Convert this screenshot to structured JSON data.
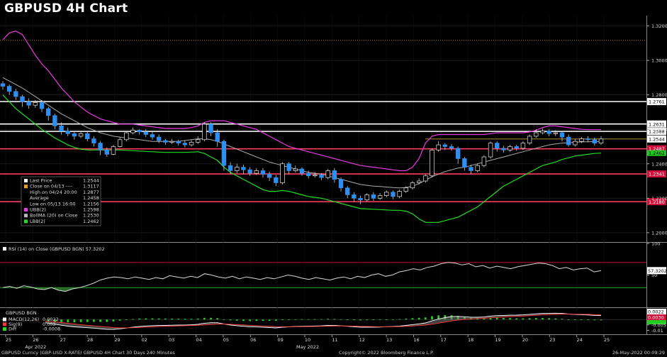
{
  "title": "GBPUSD 4H Chart",
  "chart_data": {
    "type": "candlestick",
    "instrument": "GBPUSD",
    "panels": {
      "price": {
        "ylim": [
          1.195,
          1.326
        ],
        "ticks": [
          "1.3200",
          "1.3000",
          "1.2800",
          "1.2600",
          "1.2400",
          "1.2200",
          "1.2000"
        ],
        "levels": [
          {
            "label": "1.2761",
            "value": 1.2761,
            "color": "#ffffff"
          },
          {
            "label": "1.2631",
            "value": 1.2631,
            "color": "#ffffff"
          },
          {
            "label": "1.2588",
            "value": 1.2588,
            "color": "#ffffff"
          },
          {
            "label": "1.2487",
            "value": 1.2487,
            "color": "#ff3b5c"
          },
          {
            "label": "1.2341",
            "value": 1.2341,
            "color": "#ff3b5c"
          },
          {
            "label": "1.2180",
            "value": 1.218,
            "color": "#ff3b5c"
          }
        ],
        "dotted_level": 1.3117,
        "last_price_line": 1.2544,
        "last_tag": "1.2544",
        "green_tag": "1.2462"
      },
      "rsi": {
        "label": "RSI (14)  on Close (GBPUSD BGN) 57.3202",
        "ylim": [
          0,
          100
        ],
        "ticks": [
          "100",
          "50"
        ],
        "overbought": 70,
        "oversold": 30,
        "last_tag": "57.3202",
        "values": [
          30,
          32,
          29,
          33,
          31,
          28,
          27,
          30,
          26,
          24,
          28,
          30,
          33,
          37,
          42,
          45,
          47,
          46,
          44,
          47,
          45,
          43,
          46,
          44,
          49,
          47,
          45,
          48,
          46,
          52,
          50,
          47,
          45,
          48,
          44,
          47,
          45,
          43,
          46,
          44,
          47,
          50,
          48,
          45,
          43,
          46,
          44,
          42,
          45,
          47,
          44,
          48,
          46,
          50,
          52,
          48,
          50,
          55,
          57,
          60,
          58,
          62,
          64,
          68,
          70,
          69,
          66,
          68,
          63,
          65,
          61,
          64,
          62,
          60,
          63,
          65,
          67,
          69,
          68,
          65,
          60,
          62,
          58,
          60,
          61,
          55,
          57
        ]
      },
      "macd": {
        "title": "GBPUSD BGN",
        "ylim": [
          -0.013,
          0.01
        ],
        "ticks": [
          "-0.005",
          "-0.01"
        ],
        "tags": [
          "0.0022",
          "0.0030"
        ]
      }
    },
    "x_ticks": [
      "25",
      "26",
      "27",
      "28",
      "29",
      "02",
      "03",
      "04",
      "05",
      "06",
      "09",
      "10",
      "11",
      "12",
      "13",
      "16",
      "17",
      "18",
      "19",
      "20",
      "23",
      "24",
      "25"
    ],
    "x_month_labels": [
      {
        "text": "Apr 2022",
        "at": 1
      },
      {
        "text": "May 2022",
        "at": 11
      }
    ],
    "candles": [
      [
        1.2865,
        1.285,
        1.288,
        1.283
      ],
      [
        1.285,
        1.282,
        1.286,
        1.28
      ],
      [
        1.282,
        1.279,
        1.2835,
        1.277
      ],
      [
        1.279,
        1.276,
        1.28,
        1.273
      ],
      [
        1.276,
        1.274,
        1.278,
        1.272
      ],
      [
        1.274,
        1.2755,
        1.277,
        1.2725
      ],
      [
        1.2755,
        1.272,
        1.277,
        1.27
      ],
      [
        1.272,
        1.268,
        1.273,
        1.265
      ],
      [
        1.268,
        1.262,
        1.269,
        1.26
      ],
      [
        1.262,
        1.259,
        1.264,
        1.257
      ],
      [
        1.259,
        1.2575,
        1.261,
        1.256
      ],
      [
        1.2575,
        1.256,
        1.259,
        1.254
      ],
      [
        1.256,
        1.2575,
        1.2585,
        1.255
      ],
      [
        1.2575,
        1.2545,
        1.259,
        1.253
      ],
      [
        1.2545,
        1.252,
        1.256,
        1.25
      ],
      [
        1.252,
        1.248,
        1.253,
        1.245
      ],
      [
        1.248,
        1.2455,
        1.2495,
        1.244
      ],
      [
        1.2455,
        1.25,
        1.251,
        1.245
      ],
      [
        1.25,
        1.254,
        1.2555,
        1.2495
      ],
      [
        1.254,
        1.258,
        1.259,
        1.253
      ],
      [
        1.258,
        1.2595,
        1.261,
        1.257
      ],
      [
        1.2595,
        1.2585,
        1.26,
        1.257
      ],
      [
        1.2585,
        1.257,
        1.26,
        1.2555
      ],
      [
        1.257,
        1.2555,
        1.2585,
        1.254
      ],
      [
        1.2555,
        1.2535,
        1.257,
        1.252
      ],
      [
        1.2535,
        1.2525,
        1.2545,
        1.251
      ],
      [
        1.2525,
        1.253,
        1.2545,
        1.2515
      ],
      [
        1.253,
        1.252,
        1.254,
        1.2505
      ],
      [
        1.252,
        1.251,
        1.2535,
        1.2495
      ],
      [
        1.251,
        1.2525,
        1.254,
        1.25
      ],
      [
        1.2525,
        1.254,
        1.256,
        1.2515
      ],
      [
        1.254,
        1.263,
        1.264,
        1.253
      ],
      [
        1.263,
        1.258,
        1.264,
        1.256
      ],
      [
        1.258,
        1.253,
        1.26,
        1.25
      ],
      [
        1.253,
        1.239,
        1.254,
        1.236
      ],
      [
        1.239,
        1.236,
        1.241,
        1.234
      ],
      [
        1.236,
        1.238,
        1.24,
        1.2345
      ],
      [
        1.238,
        1.2365,
        1.2395,
        1.234
      ],
      [
        1.2365,
        1.2345,
        1.238,
        1.233
      ],
      [
        1.2345,
        1.236,
        1.2375,
        1.2335
      ],
      [
        1.236,
        1.234,
        1.2375,
        1.232
      ],
      [
        1.234,
        1.232,
        1.2355,
        1.23
      ],
      [
        1.232,
        1.229,
        1.2335,
        1.227
      ],
      [
        1.229,
        1.24,
        1.241,
        1.228
      ],
      [
        1.24,
        1.236,
        1.241,
        1.234
      ],
      [
        1.236,
        1.237,
        1.239,
        1.235
      ],
      [
        1.237,
        1.2345,
        1.238,
        1.233
      ],
      [
        1.2345,
        1.233,
        1.236,
        1.2315
      ],
      [
        1.233,
        1.2335,
        1.235,
        1.232
      ],
      [
        1.2335,
        1.232,
        1.2345,
        1.2305
      ],
      [
        1.232,
        1.236,
        1.237,
        1.231
      ],
      [
        1.236,
        1.231,
        1.2375,
        1.229
      ],
      [
        1.231,
        1.226,
        1.232,
        1.224
      ],
      [
        1.226,
        1.222,
        1.227,
        1.22
      ],
      [
        1.222,
        1.22,
        1.2235,
        1.218
      ],
      [
        1.22,
        1.219,
        1.2215,
        1.2165
      ],
      [
        1.219,
        1.222,
        1.223,
        1.218
      ],
      [
        1.222,
        1.22,
        1.2235,
        1.2185
      ],
      [
        1.22,
        1.2215,
        1.223,
        1.219
      ],
      [
        1.2215,
        1.2235,
        1.2245,
        1.2205
      ],
      [
        1.2235,
        1.221,
        1.2245,
        1.2195
      ],
      [
        1.221,
        1.224,
        1.225,
        1.22
      ],
      [
        1.224,
        1.226,
        1.227,
        1.223
      ],
      [
        1.226,
        1.229,
        1.23,
        1.225
      ],
      [
        1.229,
        1.23,
        1.2315,
        1.228
      ],
      [
        1.23,
        1.233,
        1.234,
        1.229
      ],
      [
        1.233,
        1.248,
        1.249,
        1.232
      ],
      [
        1.248,
        1.251,
        1.253,
        1.247
      ],
      [
        1.251,
        1.25,
        1.252,
        1.248
      ],
      [
        1.25,
        1.249,
        1.2515,
        1.2475
      ],
      [
        1.249,
        1.243,
        1.25,
        1.24
      ],
      [
        1.243,
        1.238,
        1.244,
        1.236
      ],
      [
        1.238,
        1.236,
        1.2395,
        1.234
      ],
      [
        1.236,
        1.239,
        1.24,
        1.235
      ],
      [
        1.239,
        1.244,
        1.245,
        1.238
      ],
      [
        1.244,
        1.252,
        1.253,
        1.243
      ],
      [
        1.252,
        1.249,
        1.253,
        1.247
      ],
      [
        1.249,
        1.248,
        1.2505,
        1.2465
      ],
      [
        1.248,
        1.25,
        1.251,
        1.247
      ],
      [
        1.25,
        1.249,
        1.251,
        1.2475
      ],
      [
        1.249,
        1.252,
        1.253,
        1.248
      ],
      [
        1.252,
        1.256,
        1.257,
        1.251
      ],
      [
        1.256,
        1.258,
        1.26,
        1.255
      ],
      [
        1.258,
        1.259,
        1.2605,
        1.257
      ],
      [
        1.259,
        1.2575,
        1.26,
        1.256
      ],
      [
        1.2575,
        1.258,
        1.2595,
        1.256
      ],
      [
        1.258,
        1.2555,
        1.259,
        1.253
      ],
      [
        1.2555,
        1.251,
        1.257,
        1.25
      ],
      [
        1.251,
        1.253,
        1.2545,
        1.25
      ],
      [
        1.253,
        1.2545,
        1.2555,
        1.252
      ],
      [
        1.2545,
        1.254,
        1.256,
        1.2525
      ],
      [
        1.254,
        1.252,
        1.255,
        1.2505
      ],
      [
        1.252,
        1.2544,
        1.256,
        1.251
      ]
    ],
    "bollinger": {
      "upper": [
        1.312,
        1.316,
        1.317,
        1.315,
        1.309,
        1.303,
        1.298,
        1.294,
        1.289,
        1.284,
        1.28,
        1.276,
        1.273,
        1.27,
        1.268,
        1.266,
        1.265,
        1.264,
        1.263,
        1.263,
        1.263,
        1.2625,
        1.262,
        1.2615,
        1.261,
        1.2605,
        1.2605,
        1.2605,
        1.2605,
        1.261,
        1.262,
        1.264,
        1.265,
        1.265,
        1.265,
        1.264,
        1.263,
        1.262,
        1.261,
        1.26,
        1.258,
        1.256,
        1.254,
        1.252,
        1.25,
        1.249,
        1.248,
        1.247,
        1.246,
        1.245,
        1.244,
        1.243,
        1.242,
        1.241,
        1.24,
        1.239,
        1.2385,
        1.238,
        1.2375,
        1.237,
        1.2365,
        1.236,
        1.236,
        1.238,
        1.243,
        1.252,
        1.256,
        1.257,
        1.257,
        1.257,
        1.257,
        1.257,
        1.257,
        1.257,
        1.257,
        1.2575,
        1.258,
        1.258,
        1.258,
        1.258,
        1.258,
        1.2585,
        1.2595,
        1.261,
        1.262,
        1.262,
        1.2615,
        1.261,
        1.2605,
        1.26,
        1.2598,
        1.2598,
        1.2598
      ],
      "middle": [
        1.29,
        1.288,
        1.286,
        1.284,
        1.2815,
        1.279,
        1.2765,
        1.274,
        1.2715,
        1.269,
        1.267,
        1.265,
        1.263,
        1.261,
        1.2595,
        1.258,
        1.257,
        1.256,
        1.2555,
        1.255,
        1.2545,
        1.254,
        1.2535,
        1.253,
        1.253,
        1.253,
        1.253,
        1.253,
        1.2535,
        1.254,
        1.2545,
        1.2545,
        1.254,
        1.253,
        1.2515,
        1.25,
        1.2485,
        1.247,
        1.2455,
        1.244,
        1.2425,
        1.241,
        1.24,
        1.239,
        1.238,
        1.237,
        1.236,
        1.235,
        1.2345,
        1.234,
        1.233,
        1.232,
        1.231,
        1.23,
        1.229,
        1.228,
        1.2275,
        1.227,
        1.2268,
        1.2265,
        1.2262,
        1.226,
        1.2262,
        1.227,
        1.2285,
        1.2305,
        1.2325,
        1.234,
        1.2355,
        1.2365,
        1.2375,
        1.238,
        1.239,
        1.24,
        1.241,
        1.242,
        1.243,
        1.244,
        1.245,
        1.246,
        1.247,
        1.248,
        1.249,
        1.25,
        1.251,
        1.2515,
        1.252,
        1.2522,
        1.2525,
        1.2527,
        1.2528,
        1.2529,
        1.253
      ],
      "lower": [
        1.28,
        1.276,
        1.272,
        1.269,
        1.266,
        1.263,
        1.26,
        1.2575,
        1.255,
        1.253,
        1.251,
        1.2495,
        1.2485,
        1.248,
        1.248,
        1.248,
        1.248,
        1.248,
        1.248,
        1.2478,
        1.2476,
        1.2474,
        1.2472,
        1.247,
        1.2468,
        1.2466,
        1.2466,
        1.2466,
        1.2466,
        1.2468,
        1.247,
        1.246,
        1.244,
        1.242,
        1.238,
        1.235,
        1.233,
        1.231,
        1.229,
        1.227,
        1.225,
        1.224,
        1.224,
        1.2245,
        1.224,
        1.223,
        1.222,
        1.221,
        1.2205,
        1.22,
        1.219,
        1.218,
        1.217,
        1.216,
        1.215,
        1.214,
        1.2138,
        1.2136,
        1.2134,
        1.2132,
        1.213,
        1.213,
        1.2125,
        1.211,
        1.208,
        1.206,
        1.206,
        1.206,
        1.207,
        1.208,
        1.209,
        1.211,
        1.213,
        1.215,
        1.218,
        1.221,
        1.224,
        1.227,
        1.229,
        1.231,
        1.233,
        1.235,
        1.237,
        1.239,
        1.24,
        1.241,
        1.2425,
        1.2435,
        1.2445,
        1.245,
        1.2455,
        1.246,
        1.2462
      ]
    },
    "legend": [
      {
        "swatch": "#ffffff",
        "label": "Last Price",
        "value": "1.2544"
      },
      {
        "swatch": "#f0a020",
        "label": "Close on 04/13 ----",
        "value": "1.3117"
      },
      {
        "swatch": "none",
        "label": "High on 04/24 20:00",
        "value": "1.2877"
      },
      {
        "swatch": "none",
        "label": "Average",
        "value": "1.2458"
      },
      {
        "swatch": "none",
        "label": "Low on 05/13 16:00",
        "value": "1.2156"
      },
      {
        "swatch": "#e83ae0",
        "label": "UBB(2)",
        "value": "1.2598"
      },
      {
        "swatch": "#bbbbbb",
        "label": "BollMA (20)  on Close",
        "value": "1.2530"
      },
      {
        "swatch": "#22dd22",
        "label": "LBB(2)",
        "value": "1.2462"
      }
    ],
    "macd_legend": [
      {
        "swatch": "#ffffff",
        "label": "MACD(12,26)",
        "value": "0.0022"
      },
      {
        "swatch": "#ff3333",
        "label": "Sig(9)",
        "value": "0.003"
      },
      {
        "swatch": "#22dd22",
        "label": "Diff",
        "value": "-0.0008"
      }
    ]
  },
  "footer": {
    "left": "GBPUSD Curncy (GBP-USD X-RATE) GBPUSD 4H Chart 30 Days 240 Minutes",
    "center": "Copyright© 2022 Bloomberg Finance L.P.",
    "right": "26-May-2022 00:09:29"
  }
}
